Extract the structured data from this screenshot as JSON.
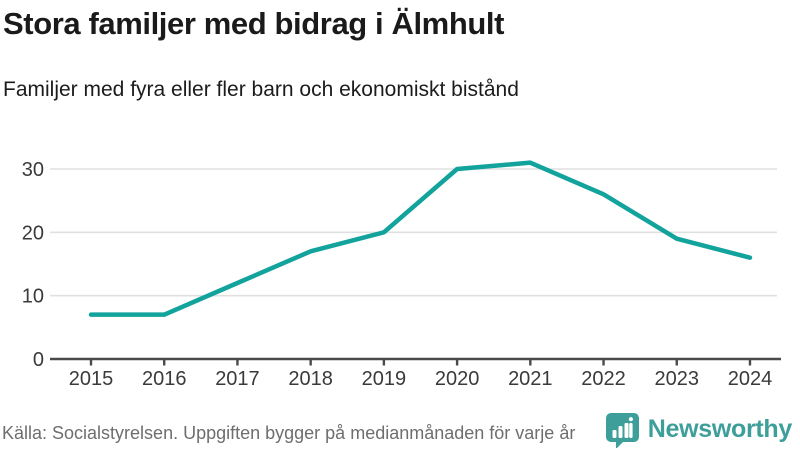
{
  "header": {
    "title": "Stora familjer med bidrag i Älmhult",
    "subtitle": "Familjer med fyra eller fler barn och ekonomiskt bistånd"
  },
  "chart_data": {
    "type": "line",
    "title": "Stora familjer med bidrag i Älmhult",
    "subtitle": "Familjer med fyra eller fler barn och ekonomiskt bistånd",
    "categories": [
      "2015",
      "2016",
      "2017",
      "2018",
      "2019",
      "2020",
      "2021",
      "2022",
      "2023",
      "2024"
    ],
    "series": [
      {
        "name": "Familjer med fyra eller fler barn och ekonomiskt bistånd",
        "values": [
          7,
          7,
          12,
          17,
          20,
          30,
          31,
          26,
          19,
          16
        ]
      }
    ],
    "xlabel": "",
    "ylabel": "",
    "ylim": [
      0,
      33
    ],
    "y_ticks": [
      0,
      10,
      20,
      30
    ],
    "y_tick_labels": [
      "0",
      "10",
      "20",
      "30"
    ],
    "grid": "horizontal",
    "legend_position": "none",
    "line_color": "#12a39c",
    "grid_color": "#e0e0e0",
    "axis_color": "#4a4a4a",
    "tick_label_color": "#3a3a3a"
  },
  "footer": {
    "source": "Källa: Socialstyrelsen. Uppgiften bygger på medianmånaden för varje år",
    "logo_text": "Newsworthy",
    "logo_icon": "newsworthy-bar-chart-speech-bubble-icon",
    "logo_color": "#3d9e9a"
  }
}
